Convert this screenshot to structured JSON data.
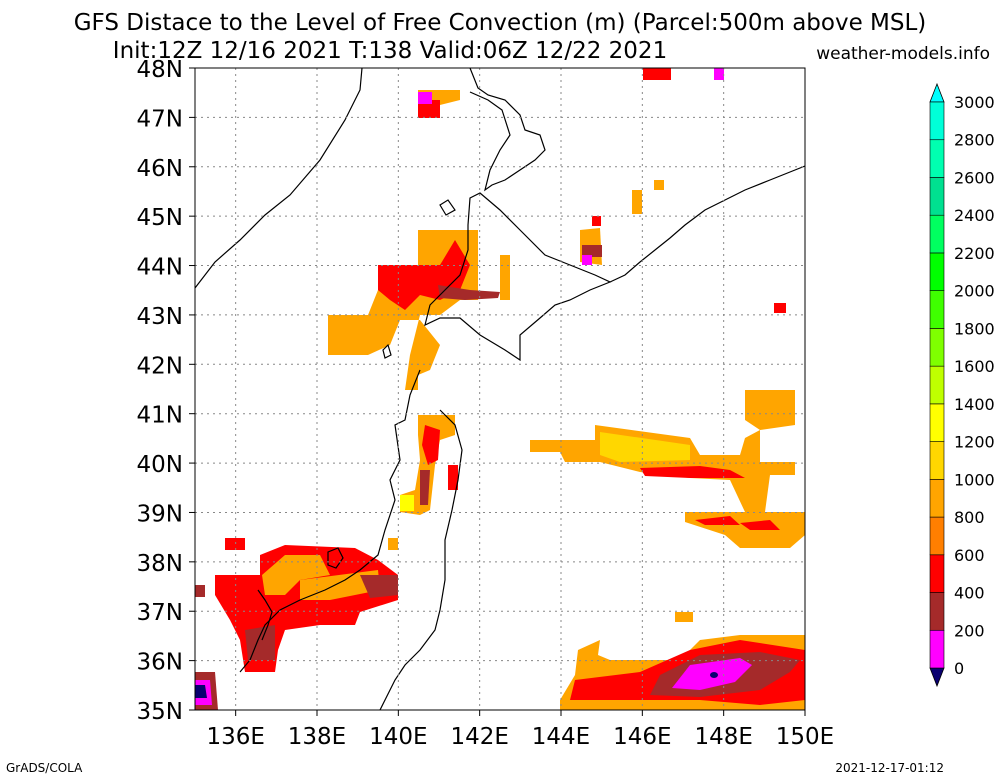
{
  "title": "GFS Distace to the Level of Free Convection (m) (Parcel:500m above MSL)",
  "subtitle": "Init:12Z 12/16 2021 T:138 Valid:06Z 12/22 2021",
  "site": "weather-models.info",
  "footer_left": "GrADS/COLA",
  "footer_right": "2021-12-17-01:12",
  "map": {
    "lon_range": [
      135,
      150
    ],
    "lat_range": [
      35,
      48
    ],
    "lat_labels": [
      "48N",
      "47N",
      "46N",
      "45N",
      "44N",
      "43N",
      "42N",
      "41N",
      "40N",
      "39N",
      "38N",
      "37N",
      "36N",
      "35N"
    ],
    "lon_labels": [
      "136E",
      "138E",
      "140E",
      "142E",
      "144E",
      "146E",
      "148E",
      "150E"
    ],
    "colorbar": {
      "labels": [
        "3000",
        "2800",
        "2600",
        "2400",
        "2200",
        "2000",
        "1800",
        "1600",
        "1400",
        "1200",
        "1000",
        "800",
        "600",
        "400",
        "200",
        "0"
      ],
      "colors": [
        "#0a0070",
        "#ff00ff",
        "#a52a2a",
        "#ff0000",
        "#ff7f00",
        "#ffa500",
        "#ffd700",
        "#ffff00",
        "#bfff00",
        "#7fff00",
        "#3fff00",
        "#00ff00",
        "#00ff60",
        "#00e090",
        "#00ffb0",
        "#00ffd8",
        "#00ffff"
      ]
    }
  }
}
